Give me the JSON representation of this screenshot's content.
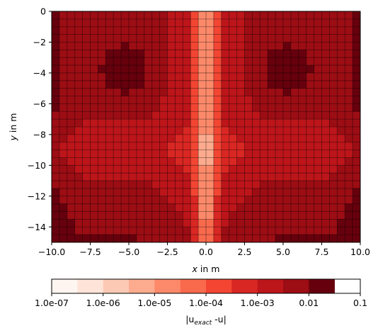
{
  "chart_data": {
    "type": "heatmap",
    "title": "",
    "xlabel_prefix": "x",
    "xlabel_suffix": " in m",
    "ylabel_prefix": "y",
    "ylabel_suffix": " in m",
    "xlim": [
      -10,
      10
    ],
    "ylim": [
      -15,
      0
    ],
    "x_ticks": [
      -10,
      -7.5,
      -5,
      -2.5,
      0,
      2.5,
      5,
      7.5,
      10
    ],
    "x_tick_labels": [
      "−10.0",
      "−7.5",
      "−5.0",
      "−2.5",
      "0.0",
      "2.5",
      "5.0",
      "7.5",
      "10.0"
    ],
    "y_ticks": [
      0,
      -2,
      -4,
      -6,
      -8,
      -10,
      -12,
      -14
    ],
    "y_tick_labels": [
      "0",
      "−2",
      "−4",
      "−6",
      "−8",
      "−10",
      "−12",
      "−14"
    ],
    "mesh": {
      "nx": 40,
      "ny": 30
    },
    "grid": true,
    "colorbar": {
      "orientation": "horizontal",
      "label_main": "|u",
      "label_sub": "exact",
      "label_rest": " -u|",
      "levels_log10": [
        -7,
        -6.5,
        -6,
        -5.5,
        -5,
        -4.5,
        -4,
        -3.5,
        -3,
        -2.5,
        -2,
        -1.5,
        -1
      ],
      "tick_values_log10": [
        -7,
        -6,
        -5,
        -4,
        -3,
        -2,
        -1
      ],
      "tick_labels": [
        "1.0e-07",
        "1.0e-06",
        "1.0e-05",
        "1.0e-04",
        "1.0e-03",
        "0.01",
        "0.1"
      ],
      "colors": [
        "#fff5f0",
        "#fee4d8",
        "#fcc9b4",
        "#fcab8f",
        "#fc8a6a",
        "#f96a4d",
        "#f24633",
        "#d92723",
        "#bc151a",
        "#9c0d14",
        "#67000d"
      ]
    },
    "peaks": [
      {
        "x": -5.25,
        "y": -3.75,
        "value": 0.1
      },
      {
        "x": 5.25,
        "y": -3.75,
        "value": 0.1
      }
    ]
  }
}
